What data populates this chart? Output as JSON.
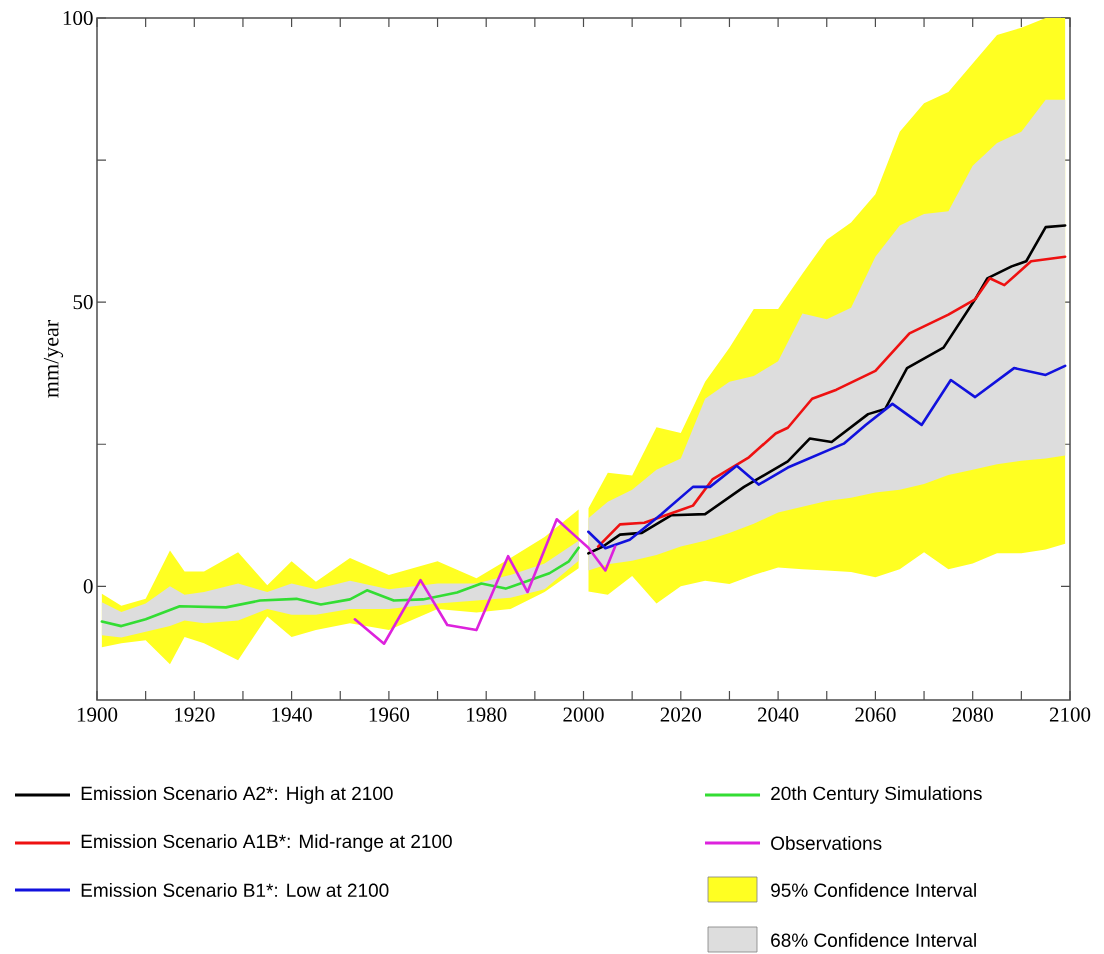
{
  "chart_data": {
    "type": "line",
    "ylabel": "mm/year",
    "xlim": [
      1900,
      2100
    ],
    "ylim": [
      -20,
      100
    ],
    "xticks": [
      1900,
      {
        "value": 1910,
        "label": null
      },
      1920,
      {
        "value": 1930,
        "label": null
      },
      1940,
      {
        "value": 1950,
        "label": null
      },
      1960,
      {
        "value": 1970,
        "label": null
      },
      1980,
      {
        "value": 1990,
        "label": null
      },
      2000,
      {
        "value": 2010,
        "label": null
      },
      2020,
      {
        "value": 2030,
        "label": null
      },
      2040,
      {
        "value": 2050,
        "label": null
      },
      2060,
      {
        "value": 2070,
        "label": null
      },
      2080,
      {
        "value": 2090,
        "label": null
      },
      2100
    ],
    "yticks": [
      0,
      {
        "value": 25,
        "label": null
      },
      50,
      {
        "value": 75,
        "label": null
      },
      100
    ],
    "legend": "bottom",
    "series": [
      {
        "name": "Emission Scenario A2*: High at 2100",
        "color": "#000000",
        "x": [
          2001,
          2004,
          2007.5,
          2012,
          2018,
          2025,
          2033,
          2042,
          2046.5,
          2051,
          2058.5,
          2062,
          2066.5,
          2074,
          2080.5,
          2083,
          2088,
          2091,
          2095,
          2099
        ],
        "values": [
          5.8,
          7,
          9.1,
          9.4,
          12.5,
          12.7,
          17.5,
          22,
          26,
          25.4,
          30.3,
          31.2,
          38.4,
          42,
          50.5,
          54.2,
          56.3,
          57.2,
          63.2,
          63.5
        ]
      },
      {
        "name": "Emission Scenario A1B*: Mid-range at 2100",
        "color": "#ee1111",
        "x": [
          2003,
          2007.5,
          2012.5,
          2017.5,
          2022.5,
          2026.5,
          2034,
          2039.5,
          2042,
          2047,
          2052,
          2060,
          2067,
          2075,
          2080.5,
          2083.5,
          2086.5,
          2092,
          2099
        ],
        "values": [
          7,
          10.9,
          11.2,
          12.7,
          14.2,
          18.8,
          22.7,
          26.9,
          27.9,
          33,
          34.6,
          37.9,
          44.5,
          47.8,
          50.5,
          54.2,
          53,
          57.2,
          58
        ]
      },
      {
        "name": "Emission Scenario B1*: Low at 2100",
        "color": "#1111dd",
        "x": [
          2001,
          2004.5,
          2009.5,
          2016,
          2022.5,
          2026,
          2031.5,
          2036,
          2042,
          2053.5,
          2058,
          2063.5,
          2069.5,
          2075.5,
          2080.5,
          2088.5,
          2095,
          2099
        ],
        "values": [
          9.6,
          6.7,
          8.2,
          12.7,
          17.5,
          17.5,
          21.2,
          17.9,
          20.9,
          25.1,
          28.4,
          32.1,
          28.4,
          36.3,
          33.3,
          38.4,
          37.2,
          38.8
        ]
      },
      {
        "name": "20th Century Simulations",
        "color": "#33dd33",
        "x": [
          1901,
          1905,
          1910,
          1917,
          1926.5,
          1933.5,
          1941,
          1946,
          1952,
          1955.5,
          1961,
          1967,
          1974,
          1979,
          1984,
          1993,
          1997,
          1999
        ],
        "values": [
          -6.2,
          -7,
          -5.8,
          -3.5,
          -3.7,
          -2.5,
          -2.2,
          -3.2,
          -2.3,
          -0.7,
          -2.5,
          -2.3,
          -1.1,
          0.5,
          -0.4,
          2.3,
          4.4,
          6.8
        ]
      },
      {
        "name": "Observations",
        "color": "#dd22dd",
        "x": [
          1953,
          1959,
          1966.5,
          1972,
          1978,
          1984.5,
          1988.5,
          1994.5,
          1998.5,
          2001,
          2004.5,
          2006.5
        ],
        "values": [
          -5.8,
          -10.1,
          1.1,
          -6.8,
          -7.7,
          5.3,
          -1,
          11.8,
          8.7,
          6.8,
          2.8,
          7
        ]
      },
      {
        "name": "95% Confidence Interval",
        "color": "#ffff22",
        "x": [
          1901,
          1905,
          1910,
          1915,
          1918,
          1922,
          1929,
          1935,
          1940,
          1945,
          1952,
          1960,
          1970,
          1978,
          1985,
          1992,
          1999,
          2000,
          2001,
          2005,
          2010,
          2015,
          2020,
          2025,
          2030,
          2035,
          2040,
          2045,
          2050,
          2055,
          2060,
          2065,
          2070,
          2075,
          2080,
          2085,
          2090,
          2095,
          2099
        ],
        "values": [
          null,
          null,
          null,
          null,
          null,
          null,
          null,
          null,
          null,
          null,
          null,
          null,
          null,
          null,
          null,
          null,
          null,
          null,
          null,
          null,
          null,
          null,
          null,
          null,
          null,
          null,
          null,
          null,
          null,
          null,
          null,
          null,
          null,
          null,
          null,
          null,
          null,
          null,
          null
        ],
        "upper": [
          -1.3,
          -3.4,
          -2.2,
          6.3,
          2.6,
          2.6,
          6,
          0.2,
          4.4,
          0.8,
          5,
          2,
          4.4,
          1.4,
          5,
          8.7,
          13.5,
          null,
          13.7,
          20,
          19.5,
          28,
          27,
          36,
          42,
          48.8,
          48.8,
          55,
          61,
          64,
          69,
          80,
          85,
          87,
          92,
          97,
          98.3,
          100,
          100
        ],
        "lower": [
          -10.7,
          -10,
          -9.5,
          -13.7,
          -8.9,
          -10,
          -13,
          -5.3,
          -8.9,
          -7.7,
          -6.5,
          -7.7,
          -4,
          -4.6,
          -4,
          -1,
          3.2,
          null,
          -0.9,
          -1.5,
          1.8,
          -3,
          0,
          1,
          0.4,
          2,
          3.3,
          3,
          2.8,
          2.5,
          1.6,
          3,
          6,
          3,
          4,
          5.8,
          5.8,
          6.5,
          7.5
        ]
      },
      {
        "name": "68% Confidence Interval",
        "color": "#dddddd",
        "x": [
          1901,
          1905,
          1910,
          1915,
          1918,
          1922,
          1929,
          1935,
          1940,
          1945,
          1952,
          1960,
          1970,
          1978,
          1985,
          1992,
          1999,
          2000,
          2001,
          2005,
          2010,
          2015,
          2020,
          2025,
          2030,
          2035,
          2040,
          2045,
          2050,
          2055,
          2060,
          2065,
          2070,
          2075,
          2080,
          2085,
          2090,
          2095,
          2099
        ],
        "values": [
          null,
          null,
          null,
          null,
          null,
          null,
          null,
          null,
          null,
          null,
          null,
          null,
          null,
          null,
          null,
          null,
          null,
          null,
          null,
          null,
          null,
          null,
          null,
          null,
          null,
          null,
          null,
          null,
          null,
          null,
          null,
          null,
          null,
          null,
          null,
          null,
          null,
          null,
          null
        ],
        "upper": [
          -2.8,
          -4.5,
          -3,
          0,
          -1.5,
          -1,
          0.5,
          -1,
          0.5,
          -0.5,
          1,
          -0.5,
          0.5,
          0.5,
          2,
          4,
          8,
          null,
          12,
          14.9,
          17,
          20.5,
          22.5,
          33,
          36,
          37,
          39.6,
          48,
          47,
          49,
          58,
          63.5,
          65.5,
          66,
          74,
          78,
          80,
          85.6,
          85.6
        ],
        "lower": [
          -8.6,
          -9,
          -8,
          -7,
          -6,
          -6.5,
          -6,
          -4,
          -5,
          -5,
          -4,
          -4,
          -3,
          -2.5,
          -2,
          -0.5,
          4.5,
          null,
          2.8,
          3.9,
          4.5,
          5.5,
          7,
          8,
          9.4,
          11,
          13,
          14,
          15,
          15.6,
          16.5,
          17,
          18,
          19.6,
          20.5,
          21.5,
          22.1,
          22.5,
          23
        ]
      }
    ]
  }
}
